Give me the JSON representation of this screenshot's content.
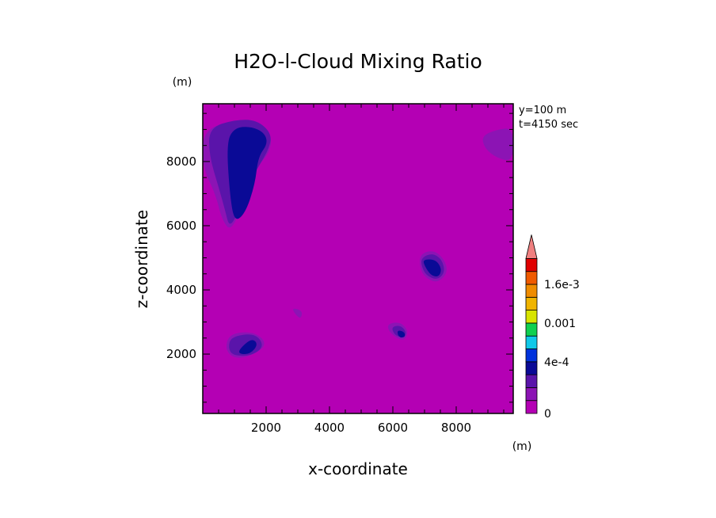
{
  "chart_data": {
    "type": "contour",
    "title": "H2O-l-Cloud Mixing Ratio",
    "xlabel": "x-coordinate",
    "ylabel": "z-coordinate",
    "x_unit": "(m)",
    "y_unit": "(m)",
    "xlim": [
      0,
      9800
    ],
    "ylim": [
      150,
      9800
    ],
    "xticks": [
      2000,
      4000,
      6000,
      8000
    ],
    "yticks": [
      2000,
      4000,
      6000,
      8000
    ],
    "info": [
      "y=100 m",
      "t=4150 sec"
    ],
    "background_color": "#b400b4",
    "colorbar": {
      "levels": [
        0,
        0.0001,
        0.0002,
        0.0003,
        0.0004,
        0.0006,
        0.0008,
        0.001,
        0.0012,
        0.0014,
        0.0016,
        0.0018,
        0.002
      ],
      "colors": [
        "#b400b4",
        "#8c14b4",
        "#5a14aa",
        "#0a0a96",
        "#0032dc",
        "#10c8e8",
        "#10d050",
        "#d8e400",
        "#f0b400",
        "#f08c00",
        "#f05a00",
        "#e00000"
      ],
      "over_color": "#f08080",
      "tick_labels": [
        {
          "value": 0,
          "label": "0"
        },
        {
          "value": 0.0004,
          "label": "4e-4"
        },
        {
          "value": 0.001,
          "label": "0.001"
        },
        {
          "value": 0.0016,
          "label": "1.6e-3"
        }
      ]
    },
    "regions": [
      {
        "level": 1,
        "points": [
          [
            0,
            9000
          ],
          [
            1000,
            9250
          ],
          [
            1700,
            9300
          ],
          [
            2150,
            8900
          ],
          [
            2150,
            8350
          ],
          [
            1700,
            7800
          ],
          [
            1300,
            6800
          ],
          [
            900,
            5800
          ],
          [
            600,
            6200
          ],
          [
            400,
            7000
          ],
          [
            0,
            7800
          ]
        ]
      },
      {
        "level": 2,
        "points": [
          [
            200,
            9050
          ],
          [
            1000,
            9300
          ],
          [
            1700,
            9300
          ],
          [
            2200,
            8850
          ],
          [
            2050,
            8300
          ],
          [
            1600,
            7600
          ],
          [
            1200,
            6600
          ],
          [
            850,
            5900
          ],
          [
            700,
            6500
          ],
          [
            500,
            7200
          ],
          [
            200,
            8200
          ]
        ]
      },
      {
        "level": 3,
        "points": [
          [
            750,
            8600
          ],
          [
            1000,
            9050
          ],
          [
            1500,
            9100
          ],
          [
            1950,
            8900
          ],
          [
            2050,
            8550
          ],
          [
            1750,
            8150
          ],
          [
            1650,
            7300
          ],
          [
            1350,
            6400
          ],
          [
            1000,
            6100
          ],
          [
            850,
            7000
          ]
        ]
      },
      {
        "level": 1,
        "points": [
          [
            8800,
            8800
          ],
          [
            9300,
            9000
          ],
          [
            9800,
            9050
          ],
          [
            9800,
            8000
          ],
          [
            9300,
            8100
          ],
          [
            8900,
            8400
          ]
        ]
      },
      {
        "level": 1,
        "points": [
          [
            6850,
            5100
          ],
          [
            7250,
            5250
          ],
          [
            7600,
            5000
          ],
          [
            7750,
            4550
          ],
          [
            7400,
            4200
          ],
          [
            7000,
            4400
          ],
          [
            6850,
            4700
          ]
        ]
      },
      {
        "level": 2,
        "points": [
          [
            6900,
            5000
          ],
          [
            7250,
            5150
          ],
          [
            7550,
            4950
          ],
          [
            7650,
            4550
          ],
          [
            7400,
            4300
          ],
          [
            7050,
            4450
          ],
          [
            6900,
            4750
          ]
        ]
      },
      {
        "level": 3,
        "points": [
          [
            6950,
            4950
          ],
          [
            7350,
            4950
          ],
          [
            7550,
            4650
          ],
          [
            7450,
            4400
          ],
          [
            7200,
            4450
          ],
          [
            7000,
            4750
          ]
        ]
      },
      {
        "level": 1,
        "points": [
          [
            5850,
            2950
          ],
          [
            6250,
            3000
          ],
          [
            6500,
            2700
          ],
          [
            6350,
            2400
          ],
          [
            6050,
            2550
          ],
          [
            5850,
            2750
          ]
        ]
      },
      {
        "level": 2,
        "points": [
          [
            5950,
            2850
          ],
          [
            6250,
            2900
          ],
          [
            6450,
            2650
          ],
          [
            6300,
            2500
          ],
          [
            6050,
            2600
          ]
        ]
      },
      {
        "level": 3,
        "points": [
          [
            6150,
            2750
          ],
          [
            6350,
            2700
          ],
          [
            6400,
            2550
          ],
          [
            6250,
            2500
          ],
          [
            6150,
            2600
          ]
        ]
      },
      {
        "level": 1,
        "points": [
          [
            850,
            2650
          ],
          [
            1650,
            2700
          ],
          [
            2050,
            2300
          ],
          [
            1550,
            1950
          ],
          [
            1000,
            1850
          ],
          [
            700,
            2150
          ]
        ]
      },
      {
        "level": 2,
        "points": [
          [
            900,
            2550
          ],
          [
            1650,
            2650
          ],
          [
            1950,
            2250
          ],
          [
            1550,
            1950
          ],
          [
            950,
            1950
          ],
          [
            800,
            2200
          ]
        ]
      },
      {
        "level": 3,
        "points": [
          [
            1150,
            2150
          ],
          [
            1550,
            2500
          ],
          [
            1750,
            2300
          ],
          [
            1500,
            2000
          ],
          [
            1150,
            2000
          ]
        ]
      },
      {
        "level": 1,
        "points": [
          [
            2800,
            3450
          ],
          [
            3150,
            3350
          ],
          [
            3100,
            3100
          ],
          [
            2950,
            3200
          ]
        ]
      }
    ]
  }
}
